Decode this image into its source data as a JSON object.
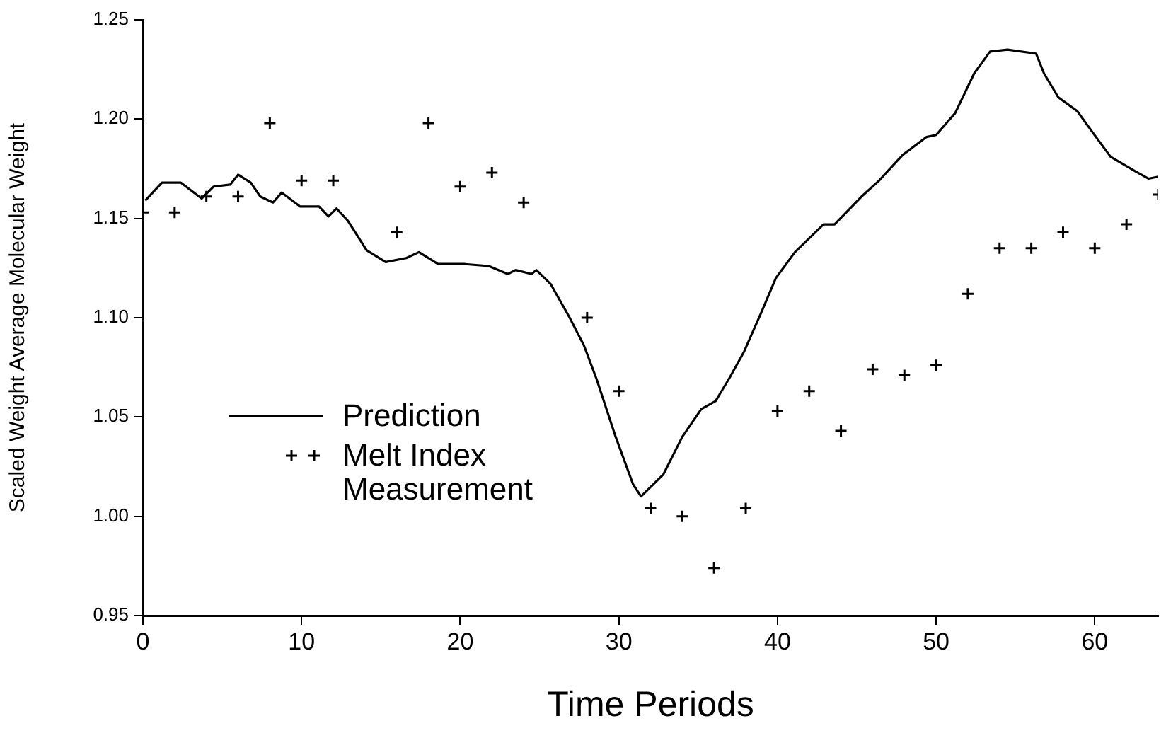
{
  "chart_data": {
    "type": "line",
    "xlabel": "Time Periods",
    "ylabel": "Scaled Weight Average Molecular Weight",
    "xlim": [
      0,
      64
    ],
    "xticks": [
      0,
      10,
      20,
      30,
      40,
      50,
      60
    ],
    "ylim": [
      0.95,
      1.25
    ],
    "yticks": [
      0.95,
      {
        "value": 1.0,
        "label": "1.00"
      },
      1.05,
      {
        "value": 1.1,
        "label": "1.10"
      },
      1.15,
      {
        "value": 1.2,
        "label": "1.20"
      },
      1.25
    ],
    "grid": false,
    "legend": "left",
    "series": [
      {
        "name": "Prediction",
        "type": "line",
        "color": "#000000",
        "marker": "none",
        "line_style": "solid",
        "x": [
          0.15,
          1.2,
          2.4,
          3.7,
          4.45,
          5.5,
          6.0,
          6.8,
          7.4,
          8.2,
          8.75,
          9.9,
          11.1,
          11.7,
          12.2,
          12.9,
          14.1,
          15.3,
          16.6,
          17.4,
          18.6,
          20.3,
          21.8,
          23.0,
          23.5,
          24.5,
          24.8,
          25.7,
          26.9,
          27.8,
          28.6,
          29.8,
          30.9,
          31.4,
          32.8,
          34.0,
          35.2,
          36.1,
          37.0,
          37.9,
          39.0,
          39.9,
          41.1,
          42.9,
          43.6,
          45.3,
          46.4,
          47.9,
          49.4,
          50.0,
          51.2,
          52.4,
          53.4,
          54.5,
          56.3,
          56.8,
          57.7,
          58.9,
          59.8,
          61.0,
          62.5,
          63.4,
          64.0
        ],
        "values": [
          1.159,
          1.168,
          1.168,
          1.16,
          1.166,
          1.167,
          1.172,
          1.168,
          1.161,
          1.158,
          1.163,
          1.156,
          1.156,
          1.151,
          1.155,
          1.149,
          1.134,
          1.128,
          1.13,
          1.133,
          1.127,
          1.127,
          1.126,
          1.122,
          1.124,
          1.122,
          1.124,
          1.117,
          1.1,
          1.086,
          1.069,
          1.04,
          1.016,
          1.01,
          1.021,
          1.04,
          1.054,
          1.058,
          1.07,
          1.083,
          1.103,
          1.12,
          1.133,
          1.147,
          1.147,
          1.161,
          1.169,
          1.182,
          1.191,
          1.192,
          1.203,
          1.223,
          1.234,
          1.235,
          1.233,
          1.223,
          1.211,
          1.204,
          1.194,
          1.181,
          1.174,
          1.17,
          1.171
        ]
      },
      {
        "name": "Melt Index Measurement",
        "type": "scatter",
        "color": "#000000",
        "marker": "cross",
        "x": [
          0,
          2,
          4,
          6,
          8,
          10,
          12,
          16,
          18,
          20,
          22,
          24,
          28,
          30,
          32,
          34,
          36,
          38,
          40,
          42,
          44,
          46,
          48,
          50,
          52,
          54,
          56,
          58,
          60,
          62,
          64
        ],
        "values": [
          1.153,
          1.153,
          1.161,
          1.161,
          1.198,
          1.169,
          1.169,
          1.143,
          1.198,
          1.166,
          1.173,
          1.158,
          1.1,
          1.063,
          1.004,
          1.0,
          0.974,
          1.004,
          1.053,
          1.063,
          1.043,
          1.074,
          1.071,
          1.076,
          1.112,
          1.135,
          1.135,
          1.143,
          1.135,
          1.147,
          1.162
        ]
      }
    ]
  }
}
